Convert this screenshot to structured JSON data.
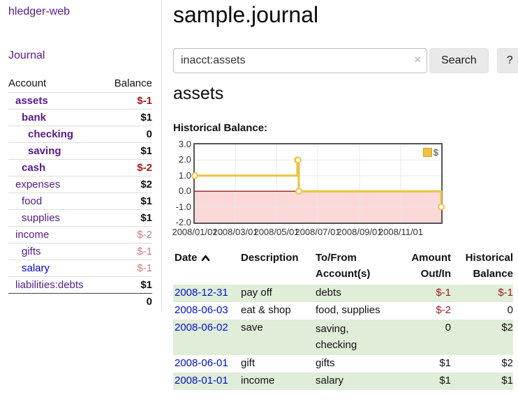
{
  "app": {
    "title": "hledger-web",
    "nav_journal": "Journal"
  },
  "sidebar": {
    "account_header": "Account",
    "balance_header": "Balance",
    "accounts": [
      {
        "name": "assets",
        "balance": "$-1"
      },
      {
        "name": "bank",
        "balance": "$1"
      },
      {
        "name": "checking",
        "balance": "0"
      },
      {
        "name": "saving",
        "balance": "$1"
      },
      {
        "name": "cash",
        "balance": "$-2"
      },
      {
        "name": "expenses",
        "balance": "$2"
      },
      {
        "name": "food",
        "balance": "$1"
      },
      {
        "name": "supplies",
        "balance": "$1"
      },
      {
        "name": "income",
        "balance": "$-2"
      },
      {
        "name": "gifts",
        "balance": "$-1"
      },
      {
        "name": "salary",
        "balance": "$-1"
      },
      {
        "name": "liabilities:debts",
        "balance": "$1"
      }
    ],
    "total": "0"
  },
  "main": {
    "title": "sample.journal",
    "search": {
      "value": "inacct:assets",
      "clear_icon": "×",
      "button_label": "Search",
      "help_label": "?"
    },
    "heading": "assets",
    "chart_title": "Historical Balance:"
  },
  "chart_data": {
    "type": "line",
    "step": true,
    "title": "Historical Balance:",
    "legend_position": "top-right",
    "series": [
      {
        "name": "$",
        "color": "#edc240",
        "points": [
          [
            "2008-01-01",
            1
          ],
          [
            "2008-06-01",
            2
          ],
          [
            "2008-06-02",
            2
          ],
          [
            "2008-06-03",
            0
          ],
          [
            "2008-12-31",
            -1
          ]
        ]
      }
    ],
    "x_ticks": [
      "2008/01/01",
      "2008/03/01",
      "2008/05/01",
      "2008/07/01",
      "2008/09/01",
      "2008/11/01"
    ],
    "y_ticks": [
      "3.0",
      "2.0",
      "1.0",
      "0.0",
      "-1.0",
      "-2.0"
    ],
    "xlim": [
      "2008-01-01",
      "2008-12-31"
    ],
    "ylim": [
      -2,
      3
    ],
    "grid": true,
    "negative_zone_color": "#fbd9d9",
    "zero_line_color": "#9a1c1c"
  },
  "table": {
    "headers": {
      "date": "Date",
      "description": "Description",
      "accounts": "To/From Account(s)",
      "amount": "Amount Out/In",
      "balance": "Historical Balance"
    },
    "rows": [
      {
        "date": "2008-12-31",
        "description": "pay off",
        "accounts": "debts",
        "amount": "$-1",
        "balance": "$-1"
      },
      {
        "date": "2008-06-03",
        "description": "eat & shop",
        "accounts": "food, supplies",
        "amount": "$-2",
        "balance": "0"
      },
      {
        "date": "2008-06-02",
        "description": "save",
        "accounts_line1": "saving,",
        "accounts_line2": "checking",
        "amount": "0",
        "balance": "$2"
      },
      {
        "date": "2008-06-01",
        "description": "gift",
        "accounts": "gifts",
        "amount": "$1",
        "balance": "$2"
      },
      {
        "date": "2008-01-01",
        "description": "income",
        "accounts": "salary",
        "amount": "$1",
        "balance": "$1"
      }
    ]
  },
  "colors": {
    "link_purple": "#551a8b",
    "link_blue": "#0011cc",
    "negative_strong": "#9d1a1a",
    "negative_muted": "#c57f7f",
    "row_green": "#e0edd9",
    "chart_line": "#edc240",
    "chart_negative_zone": "#fbd9d9",
    "chart_zero_line": "#9a1c1c",
    "chart_border": "#545454"
  }
}
